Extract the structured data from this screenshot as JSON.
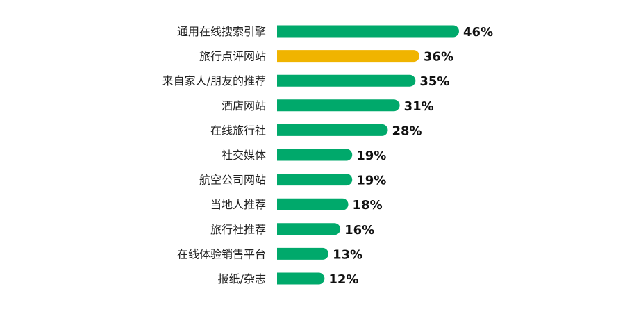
{
  "chart_data": {
    "type": "bar",
    "orientation": "horizontal",
    "categories": [
      "通用在线搜索引擎",
      "旅行点评网站",
      "来自家人/朋友的推荐",
      "酒店网站",
      "在线旅行社",
      "社交媒体",
      "航空公司网站",
      "当地人推荐",
      "旅行社推荐",
      "在线体验销售平台",
      "报纸/杂志"
    ],
    "values": [
      46,
      36,
      35,
      31,
      28,
      19,
      19,
      18,
      16,
      13,
      12
    ],
    "value_labels": [
      "46%",
      "36%",
      "35%",
      "31%",
      "28%",
      "19%",
      "19%",
      "18%",
      "16%",
      "13%",
      "12%"
    ],
    "highlight_index": 1,
    "xlim": [
      0,
      46
    ],
    "grid": false,
    "title": "",
    "xlabel": "",
    "ylabel": ""
  },
  "colors": {
    "bar": "#00a96b",
    "highlight": "#f0b400"
  }
}
